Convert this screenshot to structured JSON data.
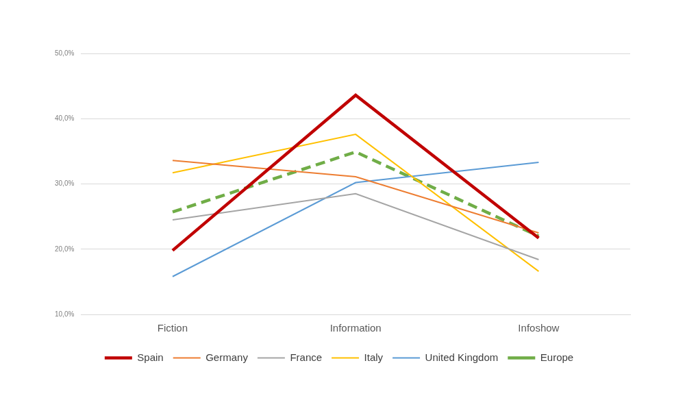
{
  "chart_data": {
    "type": "line",
    "categories": [
      "Fiction",
      "Information",
      "Infoshow"
    ],
    "series": [
      {
        "name": "Spain",
        "color": "#c00000",
        "line_style": "solid",
        "values": [
          19.8,
          43.6,
          21.7
        ]
      },
      {
        "name": "Germany",
        "color": "#ed7d31",
        "line_style": "solid",
        "values": [
          33.6,
          31.1,
          22.5
        ]
      },
      {
        "name": "France",
        "color": "#a5a5a5",
        "line_style": "solid",
        "values": [
          24.5,
          28.5,
          18.4
        ]
      },
      {
        "name": "Italy",
        "color": "#ffc000",
        "line_style": "solid",
        "values": [
          31.7,
          37.6,
          16.6
        ]
      },
      {
        "name": "United Kingdom",
        "color": "#5b9bd5",
        "line_style": "solid",
        "values": [
          15.8,
          30.2,
          33.3
        ]
      },
      {
        "name": "Europe",
        "color": "#70ad47",
        "line_style": "dashed",
        "values": [
          25.7,
          34.9,
          22.0
        ]
      }
    ],
    "ylim": [
      10,
      50
    ],
    "yticks": [
      {
        "value": 10,
        "label": "10,0%"
      },
      {
        "value": 20,
        "label": "20,0%"
      },
      {
        "value": 30,
        "label": "30,0%"
      },
      {
        "value": 40,
        "label": "40,0%"
      },
      {
        "value": 50,
        "label": "50,0%"
      }
    ],
    "grid": true,
    "legend": "bottom",
    "marker": "none"
  }
}
